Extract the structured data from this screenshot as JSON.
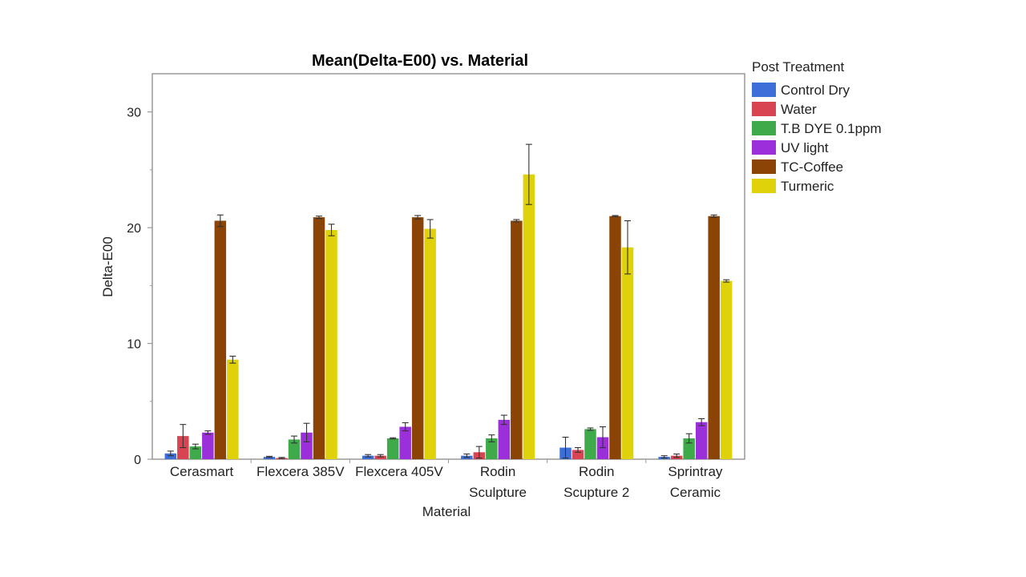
{
  "chart_data": {
    "type": "bar",
    "title": "Mean(Delta-E00) vs. Material",
    "xlabel": "Material",
    "ylabel": "Delta-E00",
    "ylim": [
      0,
      33.3
    ],
    "yticks": [
      0,
      10,
      20,
      30
    ],
    "categories": [
      [
        "Cerasmart"
      ],
      [
        "Flexcera 385V"
      ],
      [
        "Flexcera 405V"
      ],
      [
        "Rodin",
        "Sculpture"
      ],
      [
        "Rodin",
        "Scupture 2"
      ],
      [
        "Sprintray",
        "Ceramic"
      ]
    ],
    "legend_title": "Post Treatment",
    "legend_position": "right",
    "series": [
      {
        "name": "Control Dry",
        "color": "#3e6fd8",
        "values": [
          0.5,
          0.2,
          0.3,
          0.3,
          1.0,
          0.2
        ],
        "errors": [
          0.2,
          0.05,
          0.1,
          0.15,
          0.9,
          0.1
        ]
      },
      {
        "name": "Water",
        "color": "#d94452",
        "values": [
          2.0,
          0.1,
          0.3,
          0.6,
          0.8,
          0.3
        ],
        "errors": [
          1.0,
          0.05,
          0.1,
          0.5,
          0.2,
          0.15
        ]
      },
      {
        "name": "T.B DYE 0.1ppm",
        "color": "#3faa49",
        "values": [
          1.1,
          1.7,
          1.8,
          1.8,
          2.6,
          1.8
        ],
        "errors": [
          0.2,
          0.3,
          0.05,
          0.3,
          0.1,
          0.4
        ]
      },
      {
        "name": "UV light",
        "color": "#9b2fd9",
        "values": [
          2.3,
          2.3,
          2.8,
          3.4,
          1.9,
          3.2
        ],
        "errors": [
          0.15,
          0.8,
          0.35,
          0.4,
          0.9,
          0.3
        ]
      },
      {
        "name": "TC-Coffee",
        "color": "#8b4405",
        "values": [
          20.6,
          20.9,
          20.9,
          20.6,
          21.0,
          21.0
        ],
        "errors": [
          0.5,
          0.1,
          0.15,
          0.1,
          0.05,
          0.1
        ]
      },
      {
        "name": "Turmeric",
        "color": "#dfd20a",
        "values": [
          8.6,
          19.8,
          19.9,
          24.6,
          18.3,
          15.4
        ],
        "errors": [
          0.3,
          0.5,
          0.8,
          2.6,
          2.3,
          0.1
        ]
      }
    ]
  }
}
